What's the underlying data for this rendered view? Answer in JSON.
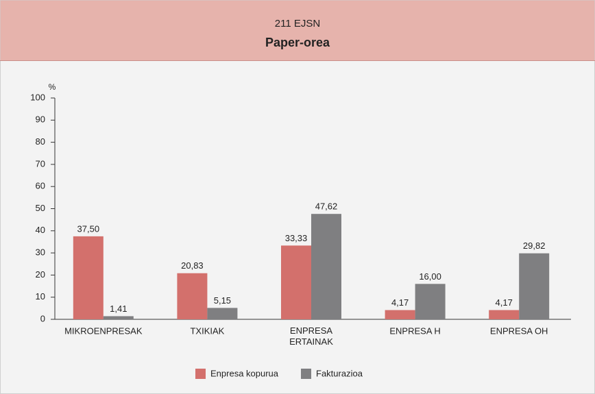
{
  "chart_data": {
    "type": "bar",
    "subtitle": "211 EJSN",
    "title": "Paper-orea",
    "y_label": "%",
    "categories": [
      "MIKROENPRESAK",
      "TXIKIAK",
      "ENPRESA ERTAINAK",
      "ENPRESA H",
      "ENPRESA OH"
    ],
    "series": [
      {
        "name": "Enpresa kopurua",
        "color": "#d3706c",
        "values": [
          37.5,
          20.83,
          33.33,
          4.17,
          4.17
        ],
        "value_labels": [
          "37,50",
          "20,83",
          "33,33",
          "4,17",
          "4,17"
        ]
      },
      {
        "name": "Fakturazioa",
        "color": "#7f7f81",
        "values": [
          1.41,
          5.15,
          47.62,
          16.0,
          29.82
        ],
        "value_labels": [
          "1,41",
          "5,15",
          "47,62",
          "16,00",
          "29,82"
        ]
      }
    ],
    "ylim": [
      0,
      100
    ],
    "yticks": [
      0,
      10,
      20,
      30,
      40,
      50,
      60,
      70,
      80,
      90,
      100
    ],
    "legend": "bottom"
  }
}
